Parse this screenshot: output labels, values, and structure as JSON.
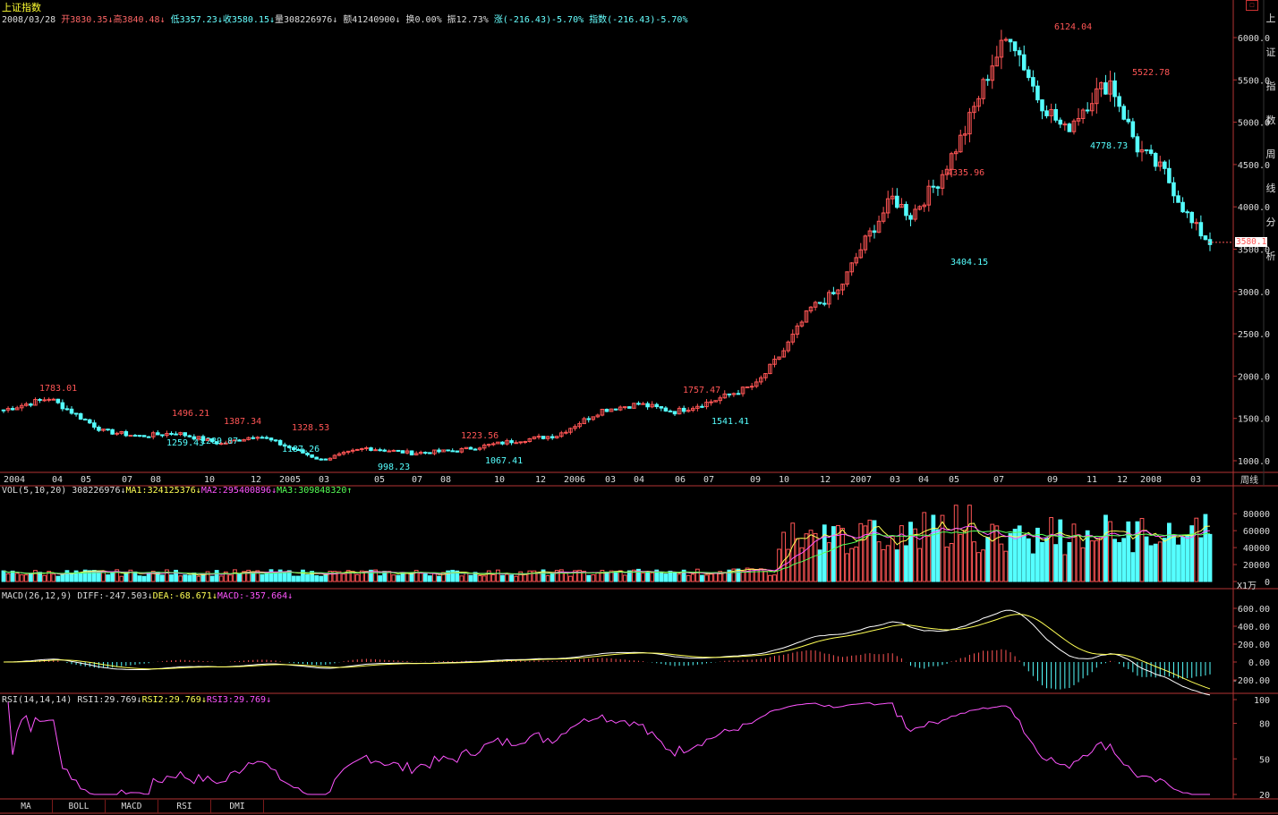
{
  "title": "上证指数",
  "quote": {
    "date": "2008/03/28",
    "open": "开3830.35",
    "high": "高3840.48",
    "low": "低3357.23",
    "close": "收3580.15",
    "volume": "量308226976",
    "amount": "额41240900",
    "turnover": "换0.00%",
    "amplitude": "振12.73%",
    "change": "涨(-216.43)-5.70%",
    "index_change": "指数(-216.43)-5.70%"
  },
  "price_panel": {
    "y_ticks": [
      "6000.0",
      "5500.0",
      "5000.0",
      "4500.0",
      "4000.0",
      "3500.0",
      "3000.0",
      "2500.0",
      "2000.0",
      "1500.0",
      "1000.0"
    ],
    "current_tag": "3580.1",
    "x_labels": [
      "2004",
      "04",
      "05",
      "07",
      "08",
      "10",
      "12",
      "2005",
      "03",
      "05",
      "07",
      "08",
      "10",
      "12",
      "2006",
      "03",
      "04",
      "06",
      "07",
      "09",
      "10",
      "12",
      "2007",
      "03",
      "04",
      "05",
      "07",
      "09",
      "11",
      "12",
      "2008",
      "03"
    ],
    "period": "周线",
    "annotations": [
      "1783.01",
      "1496.21",
      "1259.43",
      "1289.87",
      "1387.34",
      "1187.26",
      "1328.53",
      "998.23",
      "1223.56",
      "1067.41",
      "1757.47",
      "1541.41",
      "4335.96",
      "3404.15",
      "6124.04",
      "4778.73",
      "5522.78"
    ]
  },
  "vol_panel": {
    "legend_name": "VOL(5,10,20)",
    "legend_val": "308226976",
    "ma1": "MA1:324125376",
    "ma2": "MA2:295400896",
    "ma3": "MA3:309848320",
    "y_ticks": [
      "80000",
      "60000",
      "40000",
      "20000",
      "0"
    ],
    "unit": "X1万"
  },
  "macd_panel": {
    "legend_name": "MACD(26,12,9)",
    "diff": "DIFF:-247.503",
    "dea": "DEA:-68.671",
    "macd": "MACD:-357.664",
    "y_ticks": [
      "600.00",
      "400.00",
      "200.00",
      "0.00",
      "-200.00"
    ]
  },
  "rsi_panel": {
    "legend_name": "RSI(14,14,14)",
    "rsi1": "RSI1:29.769",
    "rsi2": "RSI2:29.769",
    "rsi3": "RSI3:29.769",
    "y_ticks": [
      "100",
      "80",
      "50",
      "20"
    ]
  },
  "tabs": [
    "MA",
    "BOLL",
    "MACD",
    "RSI",
    "DMI"
  ],
  "right_strip": [
    "上",
    "证",
    "指",
    "数",
    "周",
    "线",
    "分",
    "析"
  ],
  "colors": {
    "up": "#ff5555",
    "down": "#55ffff",
    "grid": "#8b1a1a",
    "axis": "#b33333",
    "ma1": "#ffffff",
    "ma2": "#ffff55",
    "ma3": "#ff55ff",
    "ma4": "#55ff55"
  }
}
